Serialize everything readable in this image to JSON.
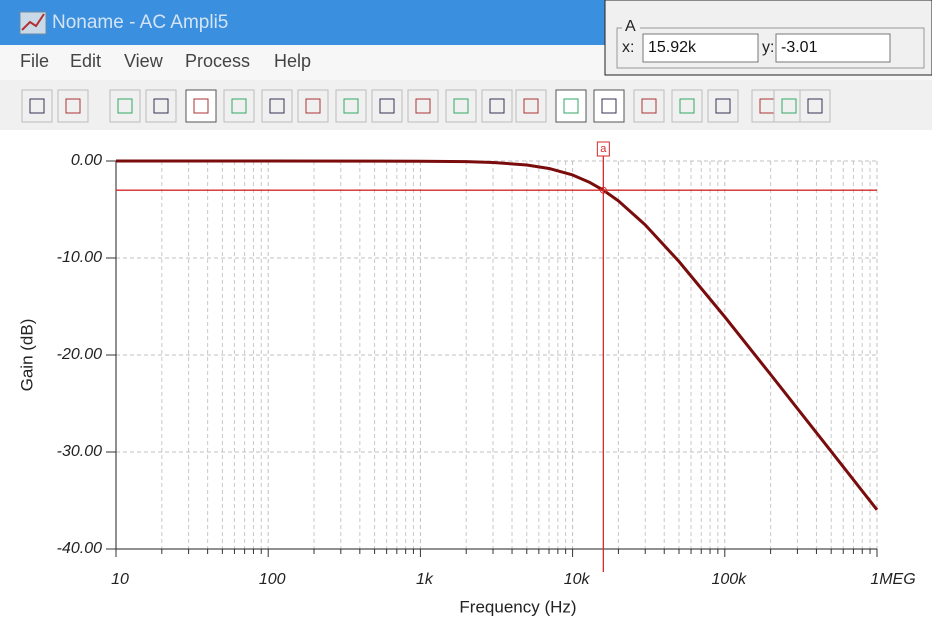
{
  "window": {
    "title": "Noname - AC Ampli5",
    "menu": [
      "File",
      "Edit",
      "View",
      "Process",
      "Help"
    ]
  },
  "cursor_box": {
    "title": "A",
    "x_label": "x:",
    "y_label": "y:"
  },
  "chart_data": {
    "type": "line",
    "xlabel": "Frequency (Hz)",
    "ylabel": "Gain (dB)",
    "xscale": "log",
    "grid": true,
    "x": [
      10,
      100,
      1000,
      2000,
      3000,
      5000,
      7000,
      10000,
      13000,
      15920,
      20000,
      30000,
      50000,
      100000,
      200000,
      500000,
      1000000
    ],
    "series": [
      {
        "color": "#7a0c0c",
        "values": [
          0.0,
          0.0,
          -0.02,
          -0.07,
          -0.15,
          -0.41,
          -0.77,
          -1.44,
          -2.22,
          -3.01,
          -4.11,
          -6.58,
          -10.36,
          -16.07,
          -22.01,
          -29.94,
          -35.96
        ]
      }
    ],
    "xlim": [
      10,
      1000000
    ],
    "xticks": [
      10,
      100,
      {
        "value": 1000,
        "label": "1k"
      },
      {
        "value": 10000,
        "label": "10k"
      },
      {
        "value": 100000,
        "label": "100k"
      },
      {
        "value": 1000000,
        "label": "1MEG"
      }
    ],
    "xminorticks": [
      20,
      30,
      40,
      50,
      60,
      70,
      80,
      90,
      200,
      300,
      400,
      500,
      600,
      700,
      800,
      900,
      2000,
      3000,
      4000,
      5000,
      6000,
      7000,
      8000,
      9000,
      20000,
      30000,
      40000,
      50000,
      60000,
      70000,
      80000,
      90000,
      200000,
      300000,
      400000,
      500000,
      600000,
      700000,
      800000,
      900000
    ],
    "ylim": [
      -40,
      0
    ],
    "yticks": [
      {
        "value": 0,
        "label": "0.00"
      },
      {
        "value": -10,
        "label": "-10.00"
      },
      {
        "value": -20,
        "label": "-20.00"
      },
      {
        "value": -30,
        "label": "-30.00"
      },
      {
        "value": -40,
        "label": "-40.00"
      }
    ],
    "cursor": {
      "label": "a",
      "x": {
        "value": 15920,
        "label": "15.92k"
      },
      "y": -3.01,
      "color": "#d42a2a"
    }
  }
}
